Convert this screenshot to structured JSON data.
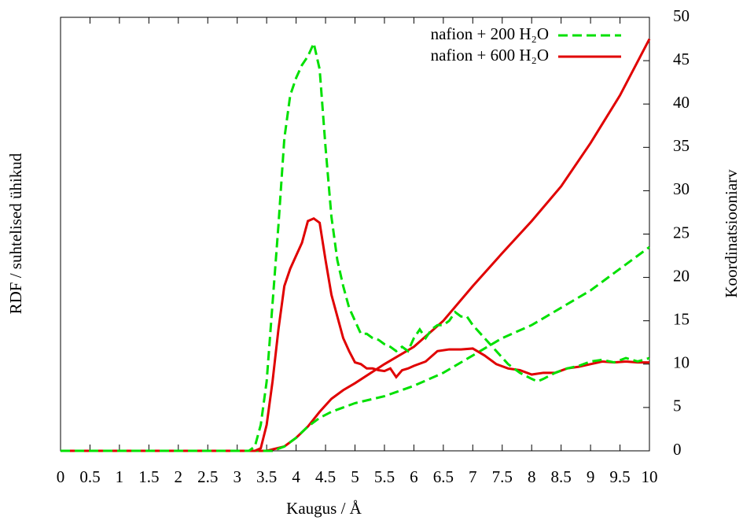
{
  "chart_data": {
    "type": "line",
    "xlabel": "Kaugus / Å",
    "ylabel": "RDF / suhtelised ühikud",
    "y2label": "Koordinatsiooniarv",
    "xlim": [
      0,
      10
    ],
    "xticks": [
      0,
      0.5,
      1,
      1.5,
      2,
      2.5,
      3,
      3.5,
      4,
      4.5,
      5,
      5.5,
      6,
      6.5,
      7,
      7.5,
      8,
      8.5,
      9,
      9.5,
      10
    ],
    "y2lim": [
      0,
      50
    ],
    "y2ticks": [
      0,
      5,
      10,
      15,
      20,
      25,
      30,
      35,
      40,
      45,
      50
    ],
    "legend": "upper-right",
    "series": [
      {
        "name": "nafion + 200 H₂O",
        "color": "#00e000",
        "dash": true,
        "axis": "y2",
        "x": [
          0,
          3.2,
          3.3,
          3.4,
          3.5,
          3.6,
          3.7,
          3.8,
          3.9,
          4.0,
          4.1,
          4.2,
          4.3,
          4.4,
          4.5,
          4.6,
          4.7,
          4.8,
          4.9,
          5.0,
          5.1,
          5.2,
          5.3,
          5.4,
          5.5,
          5.6,
          5.7,
          5.8,
          5.9,
          6.0,
          6.1,
          6.2,
          6.3,
          6.4,
          6.5,
          6.6,
          6.7,
          6.8,
          6.9,
          7.0,
          7.2,
          7.4,
          7.6,
          7.8,
          8.0,
          8.1,
          8.2,
          8.4,
          8.6,
          8.8,
          9.0,
          9.2,
          9.4,
          9.6,
          9.8,
          10
        ],
        "values": [
          0,
          0,
          0.5,
          3,
          8,
          17,
          26,
          36,
          41,
          43,
          44.5,
          45.5,
          47,
          44,
          35,
          27,
          22,
          19,
          16.5,
          15,
          13.5,
          13.5,
          13,
          12.8,
          12.3,
          12,
          11.5,
          12,
          11.5,
          13,
          14,
          13,
          14,
          14.5,
          14.5,
          15,
          16,
          15.5,
          15.5,
          14.5,
          13,
          11.5,
          10,
          9,
          8.3,
          8,
          8.3,
          9,
          9.5,
          9.8,
          10.3,
          10.5,
          10.2,
          10.7,
          10.3,
          10.7
        ]
      },
      {
        "name": "nafion + 600 H₂O",
        "color": "#e00000",
        "dash": false,
        "axis": "y2",
        "x": [
          0,
          3.3,
          3.4,
          3.5,
          3.6,
          3.7,
          3.8,
          3.9,
          4.0,
          4.1,
          4.2,
          4.3,
          4.4,
          4.5,
          4.6,
          4.7,
          4.8,
          4.9,
          5.0,
          5.1,
          5.2,
          5.3,
          5.4,
          5.5,
          5.6,
          5.7,
          5.8,
          5.9,
          6.0,
          6.2,
          6.4,
          6.6,
          6.8,
          7.0,
          7.2,
          7.4,
          7.6,
          7.8,
          8.0,
          8.2,
          8.4,
          8.6,
          8.8,
          9.0,
          9.2,
          9.4,
          9.6,
          9.8,
          10
        ],
        "values": [
          0,
          0,
          0.3,
          3,
          8,
          14,
          19,
          21,
          22.5,
          24,
          26.5,
          26.8,
          26.3,
          22,
          18,
          15.5,
          13,
          11.5,
          10.2,
          10,
          9.5,
          9.5,
          9.3,
          9.2,
          9.5,
          8.5,
          9.3,
          9.5,
          9.8,
          10.3,
          11.5,
          11.7,
          11.7,
          11.8,
          11,
          10,
          9.5,
          9.3,
          8.8,
          9,
          9,
          9.5,
          9.7,
          10,
          10.3,
          10.2,
          10.3,
          10.2,
          10.2
        ]
      },
      {
        "color": "#00e000",
        "dash": true,
        "axis": "y2",
        "x": [
          3.2,
          3.6,
          3.8,
          4.0,
          4.2,
          4.4,
          4.6,
          5.0,
          5.5,
          6.0,
          6.5,
          7.0,
          7.5,
          8.0,
          8.5,
          9.0,
          9.5,
          10
        ],
        "values": [
          0,
          0,
          0.5,
          1.5,
          2.8,
          3.8,
          4.5,
          5.5,
          6.3,
          7.5,
          9,
          11,
          13,
          14.5,
          16.5,
          18.5,
          21,
          23.5
        ]
      },
      {
        "color": "#e00000",
        "dash": false,
        "axis": "y2",
        "x": [
          3.2,
          3.5,
          3.8,
          4.0,
          4.2,
          4.4,
          4.6,
          4.8,
          5.0,
          5.5,
          6.0,
          6.5,
          7.0,
          7.5,
          8.0,
          8.5,
          9.0,
          9.5,
          10
        ],
        "values": [
          0,
          0,
          0.5,
          1.5,
          2.8,
          4.5,
          6,
          7,
          7.8,
          10,
          12,
          15,
          19,
          22.8,
          26.5,
          30.5,
          35.5,
          41,
          47.5
        ]
      }
    ]
  }
}
